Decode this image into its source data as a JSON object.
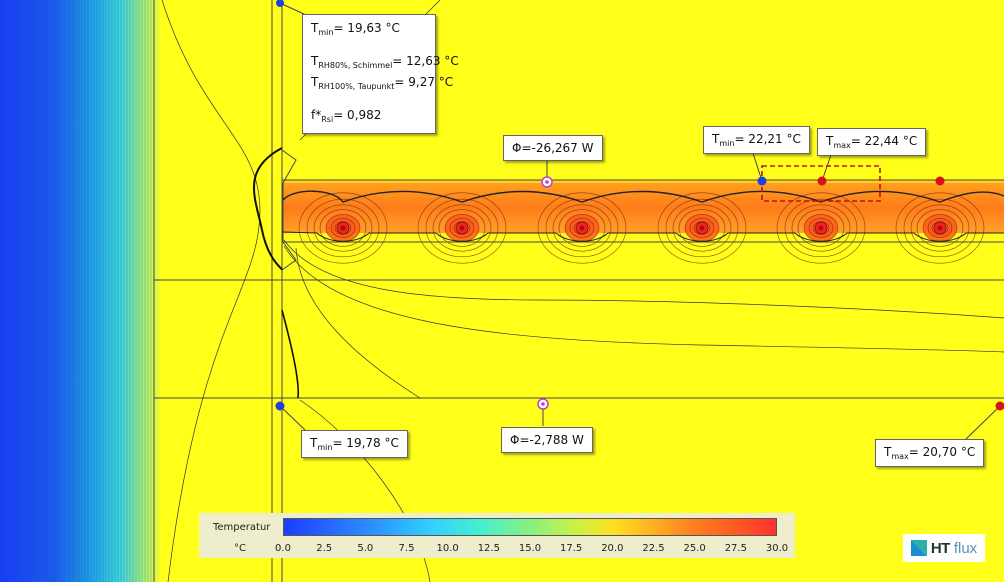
{
  "callouts": {
    "c1": {
      "tmin_sym": "T",
      "tmin_sub": "min",
      "tmin_val": "= 19,63 °C",
      "rh80_sym": "T",
      "rh80_sub": "RH80%, Schimmel",
      "rh80_val": "= 12,63 °C",
      "rh100_sym": "T",
      "rh100_sub": "RH100%, Taupunkt",
      "rh100_val": "= 9,27 °C",
      "f_sym": "f*",
      "f_sub": "Rsi",
      "f_val": "= 0,982"
    },
    "phi1": {
      "text": "Φ=-26,267 W"
    },
    "tmin2": {
      "sym": "T",
      "sub": "min",
      "val": "= 22,21 °C"
    },
    "tmax1": {
      "sym": "T",
      "sub": "max",
      "val": "= 22,44 °C"
    },
    "tmin3": {
      "sym": "T",
      "sub": "min",
      "val": "= 19,78 °C"
    },
    "phi2": {
      "text": "Φ=-2,788 W"
    },
    "tmax2": {
      "sym": "T",
      "sub": "max",
      "val": "= 20,70 °C"
    }
  },
  "legend": {
    "title": "Temperatur",
    "unit": "°C",
    "ticks": [
      "0.0",
      "2.5",
      "5.0",
      "7.5",
      "10.0",
      "12.5",
      "15.0",
      "17.5",
      "20.0",
      "22.5",
      "25.0",
      "27.5",
      "30.0"
    ],
    "range": [
      0,
      30
    ]
  },
  "brand": {
    "ht": "HT",
    "flux": "flux",
    "icon": "htflux-logo-icon"
  },
  "colors": {
    "field": "#ffff1a",
    "cold": "#1e3cff",
    "warm": "#ff8a1c",
    "hot": "#e8281c",
    "probe_blue": "#1f3fe0",
    "probe_red": "#d8101c"
  }
}
